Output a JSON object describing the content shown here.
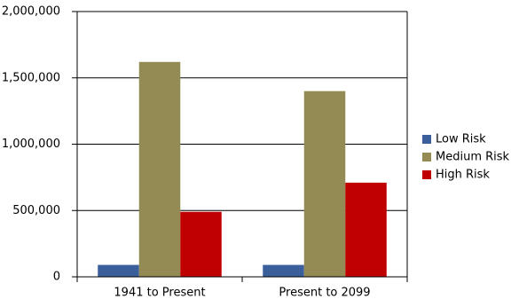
{
  "chart_data": {
    "type": "bar",
    "categories": [
      "1941 to Present",
      "Present to 2099"
    ],
    "series": [
      {
        "name": "Low Risk",
        "color": "#3a5f9a",
        "values": [
          90000,
          90000
        ]
      },
      {
        "name": "Medium Risk",
        "color": "#948a54",
        "values": [
          1620000,
          1400000
        ]
      },
      {
        "name": "High Risk",
        "color": "#c00000",
        "values": [
          490000,
          710000
        ]
      }
    ],
    "ylim": [
      0,
      2000000
    ],
    "yticks": [
      0,
      {
        "value": 500000,
        "label": "500,000"
      },
      {
        "value": 1000000,
        "label": "1,000,000"
      },
      {
        "value": 1500000,
        "label": "1,500,000"
      },
      {
        "value": 2000000,
        "label": "2,000,000"
      }
    ],
    "grid": true,
    "legend": "right"
  }
}
